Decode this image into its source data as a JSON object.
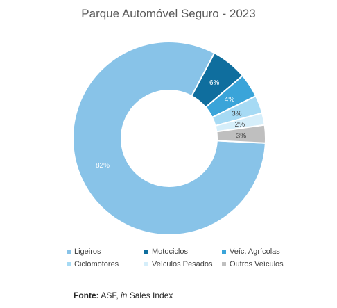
{
  "chart_data": {
    "type": "pie",
    "title": "Parque Automóvel Seguro - 2023",
    "categories": [
      "Ligeiros",
      "Motociclos",
      "Veíc. Agrícolas",
      "Ciclomotores",
      "Veículos Pesados",
      "Outros Veículos"
    ],
    "values": [
      82,
      6,
      4,
      3,
      2,
      3
    ],
    "data_labels": [
      "82%",
      "6%",
      "4%",
      "3%",
      "2%",
      "3%"
    ],
    "colors": [
      "#88c3e8",
      "#0f6e9e",
      "#3aa4d9",
      "#a6daf4",
      "#d5eefa",
      "#bfbfbf"
    ],
    "label_colors": [
      "#ffffff",
      "#ffffff",
      "#ffffff",
      "#404040",
      "#404040",
      "#404040"
    ],
    "donut": true,
    "legend_position": "bottom"
  },
  "source": {
    "label": "Fonte:",
    "text": " ASF, ",
    "italic": "in",
    "rest": " Sales Index"
  }
}
